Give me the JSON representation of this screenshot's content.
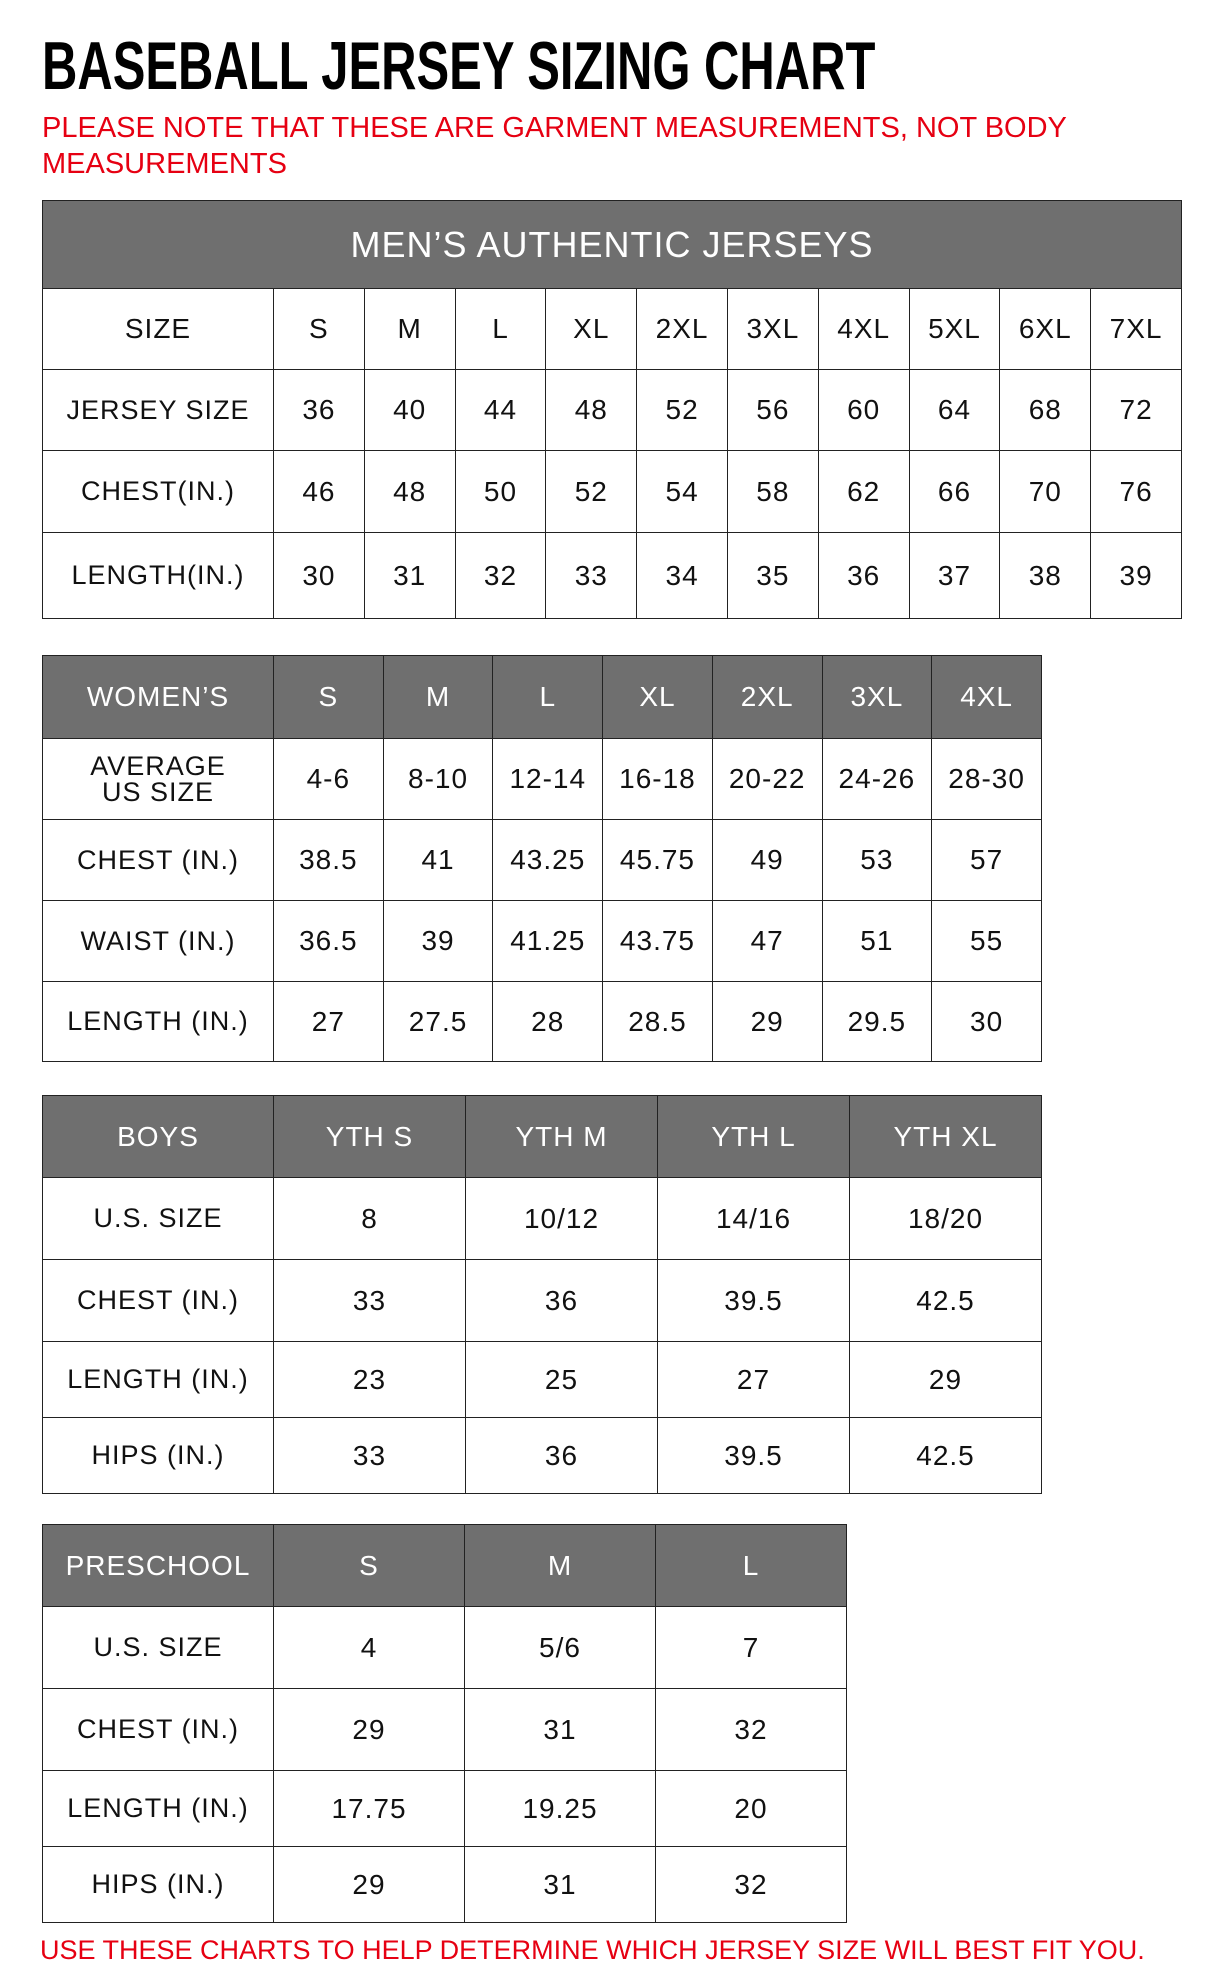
{
  "title": "BASEBALL JERSEY SIZING CHART",
  "note": "PLEASE NOTE THAT THESE ARE GARMENT MEASUREMENTS, NOT BODY MEASUREMENTS",
  "footer": "USE THESE CHARTS TO HELP DETERMINE WHICH JERSEY SIZE WILL BEST FIT YOU.",
  "colors": {
    "header_bg": "#6f6f6f",
    "note_red": "#e60012"
  },
  "tables": [
    {
      "id": "mens",
      "banner": "MEN’S AUTHENTIC JERSEYS",
      "header_gray": false,
      "header": [
        "SIZE",
        "S",
        "M",
        "L",
        "XL",
        "2XL",
        "3XL",
        "4XL",
        "5XL",
        "6XL",
        "7XL"
      ],
      "rows": [
        [
          "JERSEY SIZE",
          "36",
          "40",
          "44",
          "48",
          "52",
          "56",
          "60",
          "64",
          "68",
          "72"
        ],
        [
          "CHEST(IN.)",
          "46",
          "48",
          "50",
          "52",
          "54",
          "58",
          "62",
          "66",
          "70",
          "76"
        ],
        [
          "LENGTH(IN.)",
          "30",
          "31",
          "32",
          "33",
          "34",
          "35",
          "36",
          "37",
          "38",
          "39"
        ]
      ]
    },
    {
      "id": "womens",
      "header_gray": true,
      "header": [
        "WOMEN’S",
        "S",
        "M",
        "L",
        "XL",
        "2XL",
        "3XL",
        "4XL"
      ],
      "rows": [
        [
          "AVERAGE US SIZE",
          "4-6",
          "8-10",
          "12-14",
          "16-18",
          "20-22",
          "24-26",
          "28-30"
        ],
        [
          "CHEST (IN.)",
          "38.5",
          "41",
          "43.25",
          "45.75",
          "49",
          "53",
          "57"
        ],
        [
          "WAIST (IN.)",
          "36.5",
          "39",
          "41.25",
          "43.75",
          "47",
          "51",
          "55"
        ],
        [
          "LENGTH (IN.)",
          "27",
          "27.5",
          "28",
          "28.5",
          "29",
          "29.5",
          "30"
        ]
      ]
    },
    {
      "id": "boys",
      "header_gray": true,
      "header": [
        "BOYS",
        "YTH S",
        "YTH M",
        "YTH L",
        "YTH XL"
      ],
      "rows": [
        [
          "U.S. SIZE",
          "8",
          "10/12",
          "14/16",
          "18/20"
        ],
        [
          "CHEST (IN.)",
          "33",
          "36",
          "39.5",
          "42.5"
        ],
        [
          "LENGTH (IN.)",
          "23",
          "25",
          "27",
          "29"
        ],
        [
          "HIPS (IN.)",
          "33",
          "36",
          "39.5",
          "42.5"
        ]
      ]
    },
    {
      "id": "preschool",
      "header_gray": true,
      "header": [
        "PRESCHOOL",
        "S",
        "M",
        "L"
      ],
      "rows": [
        [
          "U.S. SIZE",
          "4",
          "5/6",
          "7"
        ],
        [
          "CHEST (IN.)",
          "29",
          "31",
          "32"
        ],
        [
          "LENGTH (IN.)",
          "17.75",
          "19.25",
          "20"
        ],
        [
          "HIPS (IN.)",
          "29",
          "31",
          "32"
        ]
      ]
    }
  ]
}
